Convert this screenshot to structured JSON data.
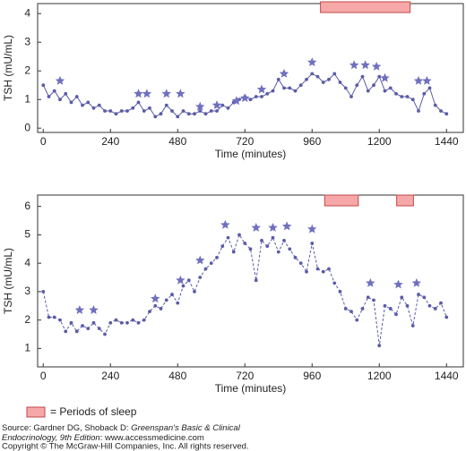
{
  "chart_data": [
    {
      "type": "line",
      "xlabel": "Time (minutes)",
      "ylabel": "TSH (mU/mL)",
      "x": [
        0,
        20,
        40,
        60,
        80,
        100,
        120,
        140,
        160,
        180,
        200,
        220,
        240,
        260,
        280,
        300,
        320,
        340,
        360,
        380,
        400,
        420,
        440,
        460,
        480,
        500,
        520,
        540,
        560,
        580,
        600,
        620,
        640,
        660,
        680,
        700,
        720,
        740,
        760,
        780,
        800,
        820,
        840,
        860,
        880,
        900,
        920,
        940,
        960,
        980,
        1000,
        1020,
        1040,
        1060,
        1080,
        1100,
        1120,
        1140,
        1160,
        1180,
        1200,
        1220,
        1240,
        1260,
        1280,
        1300,
        1320,
        1340,
        1360,
        1380,
        1400,
        1420,
        1440
      ],
      "series": [
        {
          "color": "#5b5ba8",
          "values": [
            1.5,
            1.1,
            1.3,
            1.0,
            1.2,
            0.9,
            1.1,
            0.8,
            0.9,
            0.7,
            0.8,
            0.6,
            0.6,
            0.5,
            0.6,
            0.6,
            0.7,
            0.9,
            0.6,
            0.7,
            0.4,
            0.5,
            0.8,
            0.6,
            0.4,
            0.6,
            0.5,
            0.5,
            0.6,
            0.5,
            0.6,
            0.6,
            0.8,
            0.7,
            0.9,
            1.0,
            1.1,
            1.0,
            1.1,
            1.1,
            1.2,
            1.3,
            1.7,
            1.4,
            1.4,
            1.3,
            1.5,
            1.7,
            1.9,
            1.8,
            1.6,
            1.7,
            1.9,
            1.6,
            1.4,
            1.1,
            1.5,
            1.8,
            1.3,
            1.5,
            1.8,
            1.3,
            1.4,
            1.2,
            1.1,
            1.1,
            1.0,
            0.6,
            1.2,
            1.4,
            0.8,
            0.6,
            0.5
          ]
        }
      ],
      "line_style": "solid",
      "pulses": {
        "x": [
          60,
          340,
          370,
          440,
          490,
          560,
          620,
          690,
          720,
          780,
          860,
          960,
          1110,
          1150,
          1190,
          1220,
          1340,
          1370
        ],
        "values": [
          1.65,
          1.2,
          1.2,
          1.2,
          1.2,
          0.75,
          0.8,
          0.95,
          1.05,
          1.35,
          1.9,
          2.3,
          2.2,
          2.2,
          2.15,
          1.75,
          1.65,
          1.65
        ]
      },
      "sleep": [
        [
          990,
          1310
        ]
      ],
      "xlim": [
        -20,
        1500
      ],
      "xticks": [
        0,
        240,
        480,
        720,
        960,
        1200,
        1440
      ],
      "ylim": [
        -0.15,
        4.35
      ],
      "yticks": [
        0,
        1,
        2,
        3,
        4
      ]
    },
    {
      "type": "line",
      "xlabel": "Time (minutes)",
      "ylabel": "TSH (mU/mL)",
      "x": [
        0,
        20,
        40,
        60,
        80,
        100,
        120,
        140,
        160,
        180,
        200,
        220,
        240,
        260,
        280,
        300,
        320,
        340,
        360,
        380,
        400,
        420,
        440,
        460,
        480,
        500,
        520,
        540,
        560,
        580,
        600,
        620,
        640,
        660,
        680,
        700,
        720,
        740,
        760,
        780,
        800,
        820,
        840,
        860,
        880,
        900,
        920,
        940,
        960,
        980,
        1000,
        1020,
        1040,
        1060,
        1080,
        1100,
        1120,
        1140,
        1160,
        1180,
        1200,
        1220,
        1240,
        1260,
        1280,
        1300,
        1320,
        1340,
        1360,
        1380,
        1400,
        1420,
        1440
      ],
      "series": [
        {
          "color": "#5b5ba8",
          "values": [
            3.0,
            2.1,
            2.1,
            2.0,
            1.6,
            1.9,
            1.6,
            1.8,
            1.7,
            1.9,
            1.7,
            1.5,
            1.9,
            2.0,
            1.9,
            1.9,
            2.0,
            1.9,
            2.0,
            2.3,
            2.5,
            2.4,
            2.7,
            2.9,
            2.6,
            3.2,
            3.4,
            3.0,
            3.5,
            3.8,
            4.0,
            4.2,
            4.6,
            4.9,
            4.4,
            5.0,
            4.7,
            4.5,
            3.4,
            4.8,
            4.6,
            4.9,
            4.4,
            4.8,
            4.5,
            4.2,
            4.0,
            3.7,
            4.7,
            3.8,
            3.7,
            3.8,
            3.3,
            3.0,
            2.4,
            2.3,
            2.0,
            2.4,
            2.8,
            2.7,
            1.1,
            2.5,
            2.4,
            2.2,
            2.8,
            2.5,
            1.8,
            2.9,
            2.8,
            2.5,
            2.4,
            2.6,
            2.1
          ]
        }
      ],
      "line_style": "dashed",
      "pulses": {
        "x": [
          130,
          180,
          400,
          490,
          560,
          650,
          760,
          820,
          870,
          960,
          1168,
          1268,
          1333
        ],
        "values": [
          2.35,
          2.35,
          2.75,
          3.4,
          4.1,
          5.35,
          5.25,
          5.25,
          5.3,
          5.2,
          3.3,
          3.25,
          3.3
        ]
      },
      "sleep": [
        [
          1005,
          1125
        ],
        [
          1262,
          1322
        ]
      ],
      "xlim": [
        -20,
        1500
      ],
      "xticks": [
        0,
        240,
        480,
        720,
        960,
        1200,
        1440
      ],
      "ylim": [
        0.35,
        6.4
      ],
      "yticks": [
        1,
        2,
        3,
        4,
        5,
        6
      ]
    }
  ],
  "legend": {
    "label": "= Periods of sleep"
  },
  "source": {
    "prefix": "Source: Gardner DG, Shoback D: ",
    "title_1": "Greenspan's Basic & Clinical",
    "title_2": "Endocrinology, 9th Edition",
    "suffix": ": www.accessmedicine.com",
    "copyright": "Copyright © The McGraw-Hill Companies, Inc. All rights reserved."
  }
}
